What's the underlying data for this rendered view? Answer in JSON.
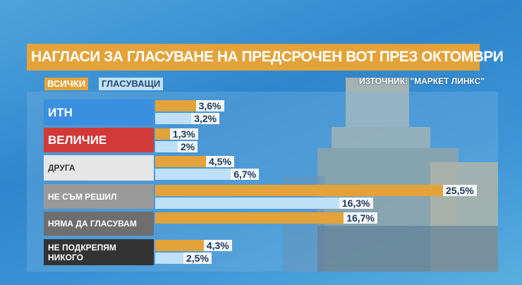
{
  "title": "НАГЛАСИ ЗА ГЛАСУВАНЕ НА ПРЕДСРОЧЕН ВОТ ПРЕЗ ОКТОМВРИ",
  "source": "ИЗТОЧНИК: \"МАРКЕТ ЛИНКС\"",
  "chart_data": {
    "type": "bar",
    "orientation": "horizontal",
    "categories": [
      "ИТН",
      "ВЕЛИЧИЕ",
      "ДРУГА",
      "НЕ СЪМ РЕШИЛ",
      "НЯМА ДА ГЛАСУВАМ",
      "НЕ ПОДКРЕПЯМ НИКОГО"
    ],
    "category_colors": [
      "#3b8fe0",
      "#d23a3a",
      "#e6e6e6",
      "#9a9a9a",
      "#6e6e6e",
      "#333333"
    ],
    "series": [
      {
        "name": "ВСИЧКИ",
        "color": "#e3a33a",
        "values": [
          3.6,
          1.3,
          4.5,
          25.5,
          16.7,
          4.3
        ],
        "labels": [
          "3,6%",
          "1,3%",
          "4,5%",
          "25,5%",
          "16,7%",
          "4,3%"
        ]
      },
      {
        "name": "ГЛАСУВАЩИ",
        "color": "#bfe0f7",
        "values": [
          3.2,
          2,
          6.7,
          16.3,
          null,
          2.5
        ],
        "labels": [
          "3,2%",
          "2%",
          "6,7%",
          "16,3%",
          "",
          "2,5%"
        ]
      }
    ]
  }
}
